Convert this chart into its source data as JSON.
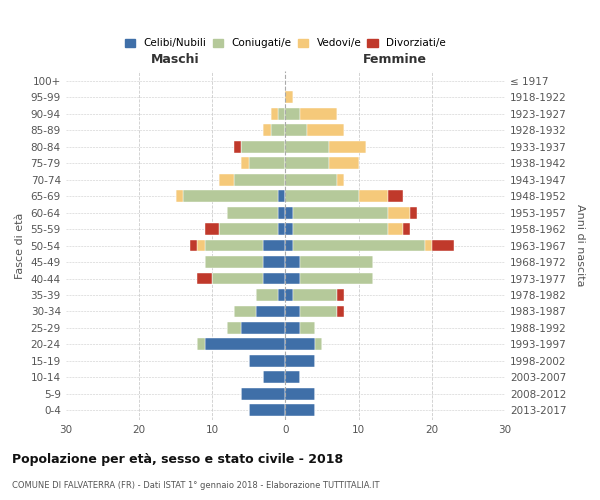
{
  "age_groups": [
    "0-4",
    "5-9",
    "10-14",
    "15-19",
    "20-24",
    "25-29",
    "30-34",
    "35-39",
    "40-44",
    "45-49",
    "50-54",
    "55-59",
    "60-64",
    "65-69",
    "70-74",
    "75-79",
    "80-84",
    "85-89",
    "90-94",
    "95-99",
    "100+"
  ],
  "birth_years": [
    "2013-2017",
    "2008-2012",
    "2003-2007",
    "1998-2002",
    "1993-1997",
    "1988-1992",
    "1983-1987",
    "1978-1982",
    "1973-1977",
    "1968-1972",
    "1963-1967",
    "1958-1962",
    "1953-1957",
    "1948-1952",
    "1943-1947",
    "1938-1942",
    "1933-1937",
    "1928-1932",
    "1923-1927",
    "1918-1922",
    "≤ 1917"
  ],
  "male": {
    "single": [
      5,
      6,
      3,
      5,
      11,
      6,
      4,
      1,
      3,
      3,
      3,
      1,
      1,
      1,
      0,
      0,
      0,
      0,
      0,
      0,
      0
    ],
    "married": [
      0,
      0,
      0,
      0,
      1,
      2,
      3,
      3,
      7,
      8,
      8,
      8,
      7,
      13,
      7,
      5,
      6,
      2,
      1,
      0,
      0
    ],
    "widowed": [
      0,
      0,
      0,
      0,
      0,
      0,
      0,
      0,
      0,
      0,
      1,
      0,
      0,
      1,
      2,
      1,
      0,
      1,
      1,
      0,
      0
    ],
    "divorced": [
      0,
      0,
      0,
      0,
      0,
      0,
      0,
      0,
      2,
      0,
      1,
      2,
      0,
      0,
      0,
      0,
      1,
      0,
      0,
      0,
      0
    ]
  },
  "female": {
    "single": [
      4,
      4,
      2,
      4,
      4,
      2,
      2,
      1,
      2,
      2,
      1,
      1,
      1,
      0,
      0,
      0,
      0,
      0,
      0,
      0,
      0
    ],
    "married": [
      0,
      0,
      0,
      0,
      1,
      2,
      5,
      6,
      10,
      10,
      18,
      13,
      13,
      10,
      7,
      6,
      6,
      3,
      2,
      0,
      0
    ],
    "widowed": [
      0,
      0,
      0,
      0,
      0,
      0,
      0,
      0,
      0,
      0,
      1,
      2,
      3,
      4,
      1,
      4,
      5,
      5,
      5,
      1,
      0
    ],
    "divorced": [
      0,
      0,
      0,
      0,
      0,
      0,
      1,
      1,
      0,
      0,
      3,
      1,
      1,
      2,
      0,
      0,
      0,
      0,
      0,
      0,
      0
    ]
  },
  "colors": {
    "single": "#3f6fa8",
    "married": "#b5c99a",
    "widowed": "#f5c97a",
    "divorced": "#c0392b"
  },
  "xlim": 30,
  "title": "Popolazione per età, sesso e stato civile - 2018",
  "subtitle": "COMUNE DI FALVATERRA (FR) - Dati ISTAT 1° gennaio 2018 - Elaborazione TUTTITALIA.IT",
  "ylabel_left": "Fasce di età",
  "ylabel_right": "Anni di nascita",
  "xlabel_male": "Maschi",
  "xlabel_female": "Femmine",
  "legend_labels": [
    "Celibi/Nubili",
    "Coniugati/e",
    "Vedovi/e",
    "Divorziati/e"
  ],
  "bg_color": "#ffffff",
  "grid_color": "#cccccc"
}
